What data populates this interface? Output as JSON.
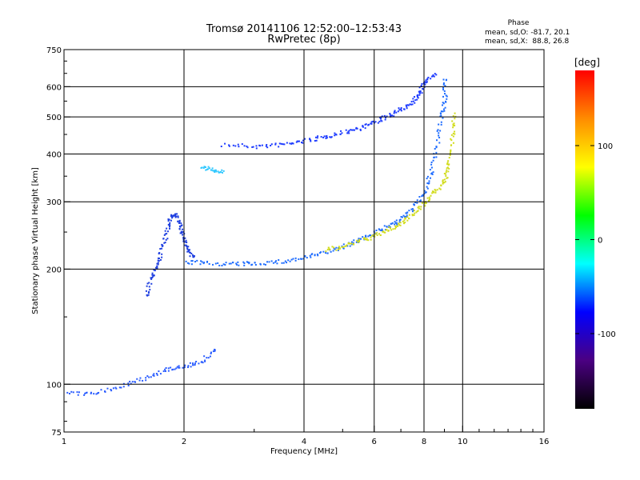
{
  "chart_data": {
    "type": "scatter",
    "title": "Tromsø 20141106 12:52:00–12:53:43",
    "subtitle": "RwPretec (8p)",
    "stats": {
      "header": "Phase",
      "line_o": "mean, sd,O: -81.7, 20.1",
      "line_x": "mean, sd,X:  88.8, 26.8"
    },
    "xlabel": "Frequency [MHz]",
    "ylabel": "Stationary phase Virtual Height [km]",
    "x_scale": "log",
    "y_scale": "log",
    "xlim": [
      1,
      16
    ],
    "ylim": [
      75,
      750
    ],
    "x_ticks": [
      1,
      2,
      4,
      6,
      8,
      10,
      16
    ],
    "y_ticks": [
      75,
      100,
      200,
      300,
      400,
      500,
      600,
      750
    ],
    "x_gridlines": [
      2,
      4,
      6,
      8,
      10
    ],
    "y_gridlines": [
      100,
      200,
      300,
      400,
      500,
      600
    ],
    "grid": true,
    "colorbar": {
      "label": "[deg]",
      "range": [
        -180,
        180
      ],
      "ticks": [
        -100,
        0,
        100
      ],
      "colors": [
        "#000000",
        "#4b0082",
        "#0000ff",
        "#00ffff",
        "#00ff00",
        "#ffff00",
        "#ff8c00",
        "#ff0000"
      ]
    },
    "series": [
      {
        "color": "#1e3cff",
        "points": [
          [
            2.5,
            425
          ],
          [
            3,
            420
          ],
          [
            3.5,
            425
          ],
          [
            4,
            435
          ],
          [
            4.5,
            445
          ],
          [
            5,
            458
          ],
          [
            5.5,
            470
          ],
          [
            6,
            487
          ],
          [
            6.5,
            505
          ],
          [
            7,
            525
          ],
          [
            7.5,
            555
          ],
          [
            7.8,
            585
          ],
          [
            8,
            620
          ],
          [
            8.5,
            650
          ]
        ]
      },
      {
        "color": "#1e6cff",
        "points": [
          [
            2,
            210
          ],
          [
            2.3,
            208
          ],
          [
            2.7,
            207
          ],
          [
            3,
            208
          ],
          [
            3.5,
            210
          ],
          [
            4,
            215
          ],
          [
            4.5,
            222
          ],
          [
            5,
            230
          ],
          [
            5.5,
            240
          ],
          [
            6,
            250
          ],
          [
            6.5,
            260
          ],
          [
            7,
            272
          ],
          [
            7.5,
            290
          ],
          [
            8,
            320
          ],
          [
            8.3,
            360
          ],
          [
            8.6,
            420
          ],
          [
            8.8,
            500
          ],
          [
            9,
            560
          ],
          [
            9,
            640
          ]
        ]
      },
      {
        "color": "#d2dc1e",
        "points": [
          [
            4.5,
            225
          ],
          [
            5,
            230
          ],
          [
            5.5,
            238
          ],
          [
            6,
            245
          ],
          [
            6.5,
            255
          ],
          [
            7,
            265
          ],
          [
            7.5,
            280
          ],
          [
            8,
            300
          ],
          [
            8.5,
            320
          ],
          [
            9,
            345
          ],
          [
            9.2,
            380
          ],
          [
            9.4,
            450
          ],
          [
            9.5,
            520
          ]
        ]
      },
      {
        "color": "#2040e0",
        "points": [
          [
            1.6,
            170
          ],
          [
            1.65,
            190
          ],
          [
            1.7,
            205
          ],
          [
            1.75,
            225
          ],
          [
            1.8,
            250
          ],
          [
            1.85,
            275
          ],
          [
            1.9,
            280
          ],
          [
            1.95,
            260
          ],
          [
            2,
            240
          ],
          [
            2.05,
            225
          ],
          [
            2.1,
            215
          ]
        ]
      },
      {
        "color": "#2a5cff",
        "points": [
          [
            1.02,
            95
          ],
          [
            1.2,
            95
          ],
          [
            1.4,
            100
          ],
          [
            1.6,
            104
          ],
          [
            1.8,
            110
          ],
          [
            2,
            112
          ],
          [
            2.2,
            115
          ],
          [
            2.4,
            125
          ]
        ]
      },
      {
        "color": "#30c8ff",
        "points": [
          [
            2.2,
            370
          ],
          [
            2.35,
            365
          ],
          [
            2.5,
            362
          ]
        ]
      }
    ]
  }
}
